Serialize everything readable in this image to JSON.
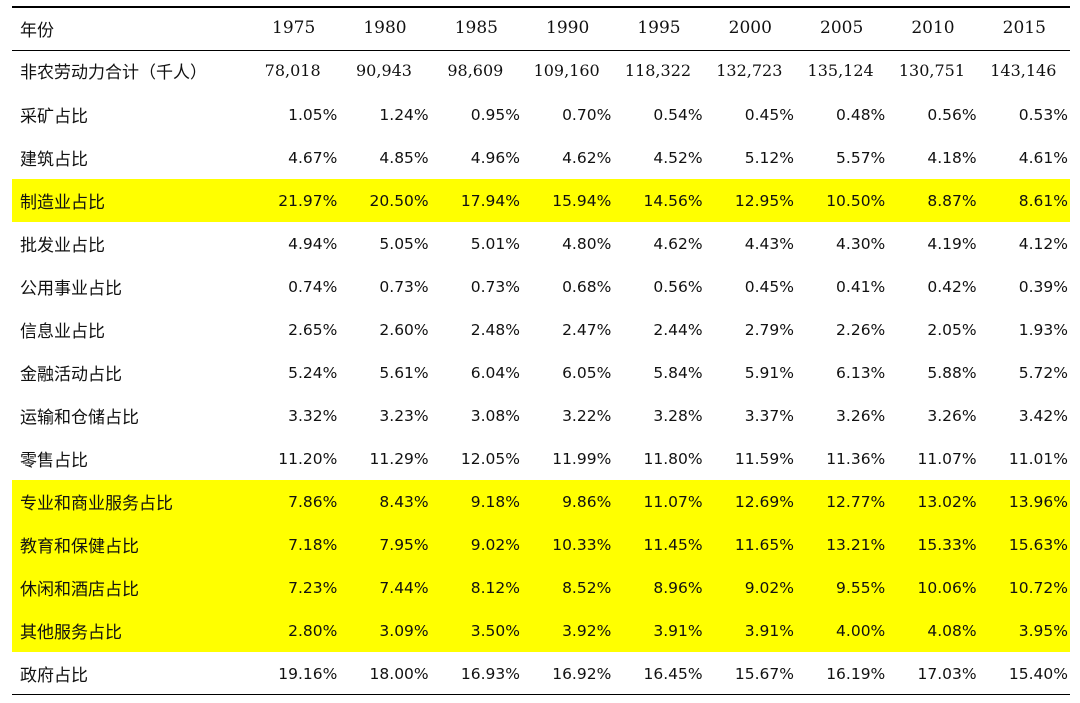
{
  "table": {
    "header": {
      "label": "年份",
      "years": [
        "1975",
        "1980",
        "1985",
        "1990",
        "1995",
        "2000",
        "2005",
        "2010",
        "2015"
      ]
    },
    "rows": [
      {
        "label": "非农劳动力合计（千人）",
        "values": [
          "78,018",
          "90,943",
          "98,609",
          "109,160",
          "118,322",
          "132,723",
          "135,124",
          "130,751",
          "143,146"
        ]
      },
      {
        "label": "采矿占比",
        "values": [
          "1.05%",
          "1.24%",
          "0.95%",
          "0.70%",
          "0.54%",
          "0.45%",
          "0.48%",
          "0.56%",
          "0.53%"
        ]
      },
      {
        "label": "建筑占比",
        "values": [
          "4.67%",
          "4.85%",
          "4.96%",
          "4.62%",
          "4.52%",
          "5.12%",
          "5.57%",
          "4.18%",
          "4.61%"
        ]
      },
      {
        "label": "制造业占比",
        "values": [
          "21.97%",
          "20.50%",
          "17.94%",
          "15.94%",
          "14.56%",
          "12.95%",
          "10.50%",
          "8.87%",
          "8.61%"
        ]
      },
      {
        "label": "批发业占比",
        "values": [
          "4.94%",
          "5.05%",
          "5.01%",
          "4.80%",
          "4.62%",
          "4.43%",
          "4.30%",
          "4.19%",
          "4.12%"
        ]
      },
      {
        "label": "公用事业占比",
        "values": [
          "0.74%",
          "0.73%",
          "0.73%",
          "0.68%",
          "0.56%",
          "0.45%",
          "0.41%",
          "0.42%",
          "0.39%"
        ]
      },
      {
        "label": "信息业占比",
        "values": [
          "2.65%",
          "2.60%",
          "2.48%",
          "2.47%",
          "2.44%",
          "2.79%",
          "2.26%",
          "2.05%",
          "1.93%"
        ]
      },
      {
        "label": "金融活动占比",
        "values": [
          "5.24%",
          "5.61%",
          "6.04%",
          "6.05%",
          "5.84%",
          "5.91%",
          "6.13%",
          "5.88%",
          "5.72%"
        ]
      },
      {
        "label": "运输和仓储占比",
        "values": [
          "3.32%",
          "3.23%",
          "3.08%",
          "3.22%",
          "3.28%",
          "3.37%",
          "3.26%",
          "3.26%",
          "3.42%"
        ]
      },
      {
        "label": "零售占比",
        "values": [
          "11.20%",
          "11.29%",
          "12.05%",
          "11.99%",
          "11.80%",
          "11.59%",
          "11.36%",
          "11.07%",
          "11.01%"
        ]
      },
      {
        "label": "专业和商业服务占比",
        "values": [
          "7.86%",
          "8.43%",
          "9.18%",
          "9.86%",
          "11.07%",
          "12.69%",
          "12.77%",
          "13.02%",
          "13.96%"
        ]
      },
      {
        "label": "教育和保健占比",
        "values": [
          "7.18%",
          "7.95%",
          "9.02%",
          "10.33%",
          "11.45%",
          "11.65%",
          "13.21%",
          "15.33%",
          "15.63%"
        ]
      },
      {
        "label": "休闲和酒店占比",
        "values": [
          "7.23%",
          "7.44%",
          "8.12%",
          "8.52%",
          "8.96%",
          "9.02%",
          "9.55%",
          "10.06%",
          "10.72%"
        ]
      },
      {
        "label": "其他服务占比",
        "values": [
          "2.80%",
          "3.09%",
          "3.50%",
          "3.92%",
          "3.91%",
          "3.91%",
          "4.00%",
          "4.08%",
          "3.95%"
        ]
      },
      {
        "label": "政府占比",
        "values": [
          "19.16%",
          "18.00%",
          "16.93%",
          "16.92%",
          "16.45%",
          "15.67%",
          "16.19%",
          "17.03%",
          "15.40%"
        ]
      }
    ],
    "highlight_color": "#ffff00"
  }
}
